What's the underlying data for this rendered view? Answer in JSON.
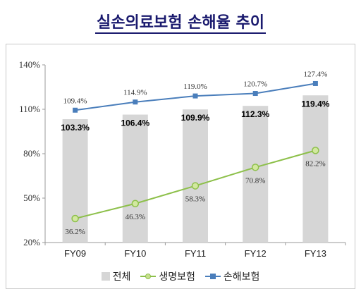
{
  "chart_data": {
    "type": "bar+line",
    "title": "실손의료보험 손해율 추이",
    "categories": [
      "FY09",
      "FY10",
      "FY11",
      "FY12",
      "FY13"
    ],
    "ylim": [
      20,
      140
    ],
    "yticks": [
      20,
      50,
      80,
      110,
      140
    ],
    "ytick_labels": [
      "20%",
      "50%",
      "80%",
      "110%",
      "140%"
    ],
    "series": [
      {
        "name": "전체",
        "kind": "bar",
        "values": [
          103.3,
          106.4,
          109.9,
          112.3,
          119.4
        ],
        "labels": [
          "103.3%",
          "106.4%",
          "109.9%",
          "112.3%",
          "119.4%"
        ],
        "color": "#d6d6d6"
      },
      {
        "name": "생명보험",
        "kind": "line",
        "marker": "circle",
        "values": [
          36.2,
          46.3,
          58.3,
          70.8,
          82.2
        ],
        "labels": [
          "36.2%",
          "46.3%",
          "58.3%",
          "70.8%",
          "82.2%"
        ],
        "color": "#8dc04a"
      },
      {
        "name": "손해보험",
        "kind": "line",
        "marker": "square",
        "values": [
          109.4,
          114.9,
          119.0,
          120.7,
          127.4
        ],
        "labels": [
          "109.4%",
          "114.9%",
          "119.0%",
          "120.7%",
          "127.4%"
        ],
        "color": "#4a7ebb"
      }
    ],
    "legend_position": "bottom",
    "grid": false
  }
}
